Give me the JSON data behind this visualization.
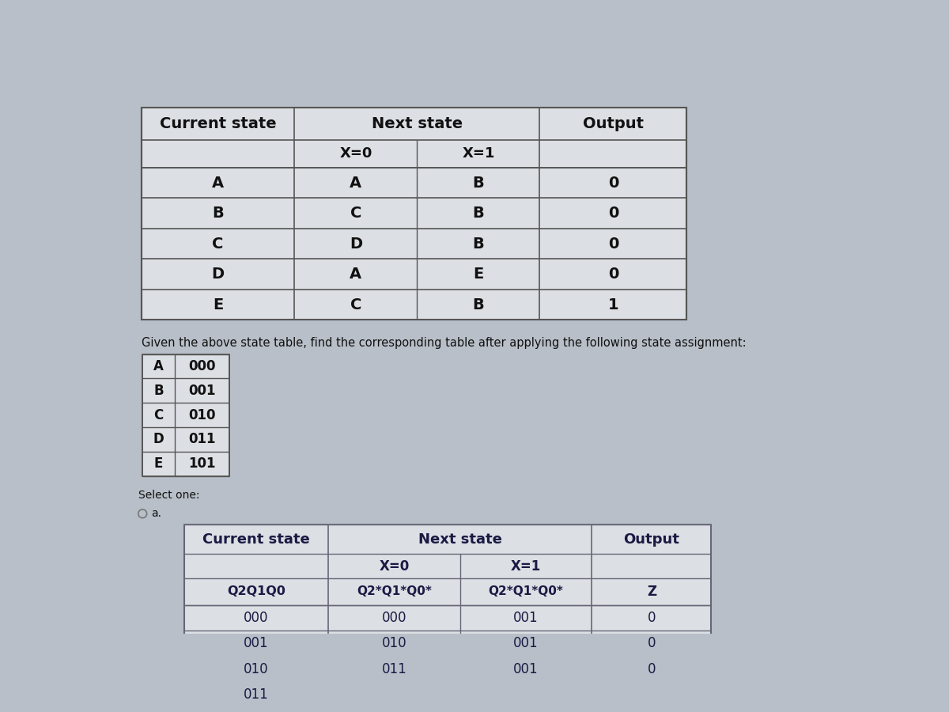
{
  "bg_color": "#b8bfc8",
  "table1_bg": "#dcdfe3",
  "table1_border": "#555555",
  "table2_bg": "#dcdfe3",
  "table2_border": "#666677",
  "font_dark": "#111111",
  "font_table2": "#1a1a44",
  "instruction": "Given the above state table, find the corresponding table after applying the following state assignment:",
  "select_text": "Select one:",
  "option_text": "a.",
  "assignment": [
    [
      "A",
      "000"
    ],
    [
      "B",
      "001"
    ],
    [
      "C",
      "010"
    ],
    [
      "D",
      "011"
    ],
    [
      "E",
      "101"
    ]
  ],
  "table1_rows": [
    [
      "A",
      "A",
      "B",
      "0"
    ],
    [
      "B",
      "C",
      "B",
      "0"
    ],
    [
      "C",
      "D",
      "B",
      "0"
    ],
    [
      "D",
      "A",
      "E",
      "0"
    ],
    [
      "E",
      "C",
      "B",
      "1"
    ]
  ],
  "table2_data_rows": [
    [
      "000",
      "000",
      "001",
      "0"
    ],
    [
      "001",
      "010",
      "001",
      "0"
    ],
    [
      "010",
      "011",
      "001",
      "0"
    ],
    [
      "011",
      "",
      "",
      ""
    ]
  ]
}
